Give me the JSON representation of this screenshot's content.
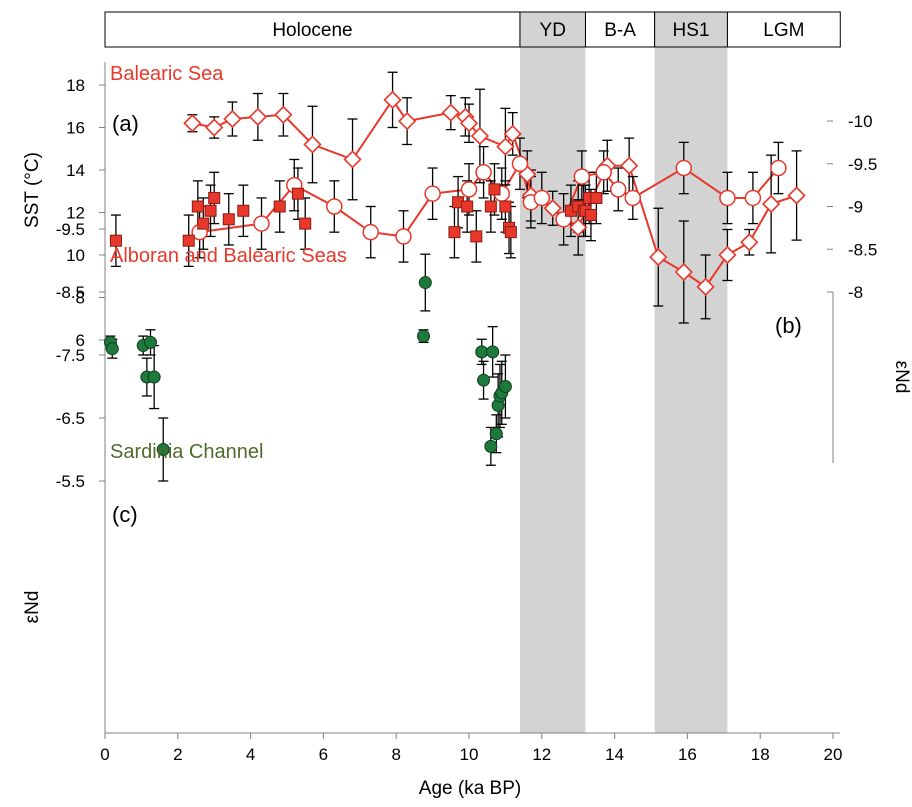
{
  "colors": {
    "red": "#e8382b",
    "green": "#1e7a3c",
    "band": "#d3d3d3",
    "axis": "#808080",
    "error": "#000000"
  },
  "chart_data": {
    "type": "scatter",
    "xlabel": "Age (ka BP)",
    "xlim": [
      0,
      20
    ],
    "x_ticks": [
      "0",
      "2",
      "4",
      "6",
      "8",
      "10",
      "12",
      "14",
      "16",
      "18",
      "20"
    ],
    "periods": [
      {
        "label": "Holocene",
        "start": 0,
        "end": 11.4,
        "shaded": false
      },
      {
        "label": "YD",
        "start": 11.4,
        "end": 13.2,
        "shaded": true
      },
      {
        "label": "B-A",
        "start": 13.2,
        "end": 15.1,
        "shaded": false
      },
      {
        "label": "HS1",
        "start": 15.1,
        "end": 17.1,
        "shaded": true
      },
      {
        "label": "LGM",
        "start": 17.1,
        "end": 20.2,
        "shaded": false
      }
    ],
    "panels": [
      {
        "id": "a",
        "panel_label": "(a)",
        "site_label": "Balearic Sea",
        "ylabel": "SST (°C)",
        "ylim": [
          4,
          18
        ],
        "y_ticks": [
          "8",
          "10",
          "12",
          "14",
          "16",
          "18"
        ],
        "marker": "diamond",
        "x": [
          2.4,
          3.0,
          3.5,
          4.2,
          4.9,
          5.7,
          6.8,
          7.9,
          8.3,
          9.5,
          9.9,
          10.0,
          10.3,
          11.0,
          11.2,
          11.6,
          11.7,
          12.3,
          13.0,
          13.8,
          14.4,
          15.2,
          15.9,
          16.5,
          17.1,
          17.7,
          18.3,
          19.0
        ],
        "y": [
          16.2,
          16.0,
          16.4,
          16.5,
          16.6,
          15.2,
          14.5,
          17.3,
          16.3,
          16.7,
          16.5,
          16.2,
          15.6,
          15.1,
          15.7,
          13.8,
          12.8,
          12.2,
          11.3,
          14.2,
          14.2,
          9.9,
          9.2,
          8.5,
          10.0,
          10.6,
          12.4,
          12.8
        ],
        "yerr": [
          0.4,
          0.5,
          0.8,
          1.1,
          1.0,
          1.8,
          1.9,
          1.3,
          1.1,
          0.8,
          0.9,
          0.9,
          2.2,
          1.8,
          1.0,
          1.1,
          1.2,
          0.8,
          1.3,
          1.2,
          1.3,
          2.3,
          2.4,
          1.5,
          1.2,
          0.6,
          2.3,
          2.1
        ]
      },
      {
        "id": "b",
        "panel_label": "(b)",
        "site_label": "Alboran and Balearic Seas",
        "ylabel": "εNd",
        "y_axis_side": "right",
        "y_reversed": true,
        "ylim": [
          -10,
          -8
        ],
        "y_ticks": [
          "-8",
          "-8.5",
          "-9",
          "-9.5",
          "-10"
        ],
        "series": [
          {
            "marker": "circle-open",
            "connected": true,
            "x": [
              2.6,
              4.3,
              5.2,
              6.3,
              7.3,
              8.2,
              9.0,
              10.0,
              10.4,
              10.9,
              11.4,
              11.7,
              12.0,
              12.6,
              13.1,
              13.7,
              14.1,
              14.5,
              15.9,
              17.1,
              17.8,
              18.5
            ],
            "y": [
              -8.7,
              -8.8,
              -9.25,
              -9.0,
              -8.7,
              -8.65,
              -9.15,
              -9.2,
              -9.4,
              -9.15,
              -9.5,
              -9.05,
              -9.1,
              -8.85,
              -9.35,
              -9.4,
              -9.2,
              -9.1,
              -9.45,
              -9.1,
              -9.1,
              -9.45
            ],
            "yerr": [
              0.3,
              0.3,
              0.3,
              0.3,
              0.3,
              0.3,
              0.3,
              0.3,
              0.3,
              0.3,
              0.3,
              0.3,
              0.3,
              0.3,
              0.3,
              0.25,
              0.25,
              0.25,
              0.3,
              0.3,
              0.3,
              0.3
            ]
          },
          {
            "marker": "square-filled",
            "connected": false,
            "x": [
              0.3,
              2.3,
              2.55,
              2.7,
              2.9,
              3.0,
              3.4,
              3.8,
              4.8,
              5.3,
              5.5,
              9.6,
              9.7,
              9.95,
              10.2,
              10.6,
              10.7,
              11.0,
              11.1,
              11.15,
              12.8,
              13.0,
              13.15,
              13.2,
              13.3,
              13.35,
              13.5
            ],
            "y": [
              -8.6,
              -8.6,
              -9.0,
              -8.8,
              -8.95,
              -9.1,
              -8.85,
              -8.95,
              -9.0,
              -9.15,
              -8.8,
              -8.7,
              -9.05,
              -9.0,
              -8.65,
              -9.0,
              -9.2,
              -9.0,
              -8.75,
              -8.7,
              -8.95,
              -9.0,
              -8.95,
              -8.95,
              -9.1,
              -8.9,
              -9.1
            ],
            "yerr": [
              0.3,
              0.3,
              0.3,
              0.3,
              0.3,
              0.3,
              0.3,
              0.3,
              0.3,
              0.3,
              0.3,
              0.3,
              0.3,
              0.3,
              0.3,
              0.3,
              0.3,
              0.3,
              0.3,
              0.3,
              0.3,
              0.3,
              0.3,
              0.3,
              0.3,
              0.3,
              0.3
            ]
          }
        ]
      },
      {
        "id": "c",
        "panel_label": "(c)",
        "site_label": "Sardinia Channel",
        "ylabel": "εNd",
        "y_reversed": true,
        "ylim": [
          -9.5,
          -5.5
        ],
        "y_ticks": [
          "-5.5",
          "-6.5",
          "-7.5",
          "-8.5",
          "-9.5"
        ],
        "marker": "circle-filled",
        "x": [
          0.15,
          0.2,
          1.05,
          1.15,
          1.25,
          1.35,
          1.6,
          8.75,
          8.8,
          10.35,
          10.4,
          10.6,
          10.65,
          10.75,
          10.8,
          10.85,
          10.9,
          11.0
        ],
        "y": [
          -7.7,
          -7.6,
          -7.65,
          -7.15,
          -7.7,
          -7.15,
          -6.0,
          -7.8,
          -8.65,
          -7.55,
          -7.1,
          -6.05,
          -7.55,
          -6.25,
          -6.7,
          -6.85,
          -6.9,
          -7.0
        ],
        "yerr": [
          0.1,
          0.15,
          0.15,
          0.3,
          0.2,
          0.5,
          0.5,
          0.1,
          0.45,
          0.2,
          0.3,
          0.3,
          0.4,
          0.3,
          0.5,
          0.5,
          0.5,
          0.5
        ]
      }
    ]
  }
}
